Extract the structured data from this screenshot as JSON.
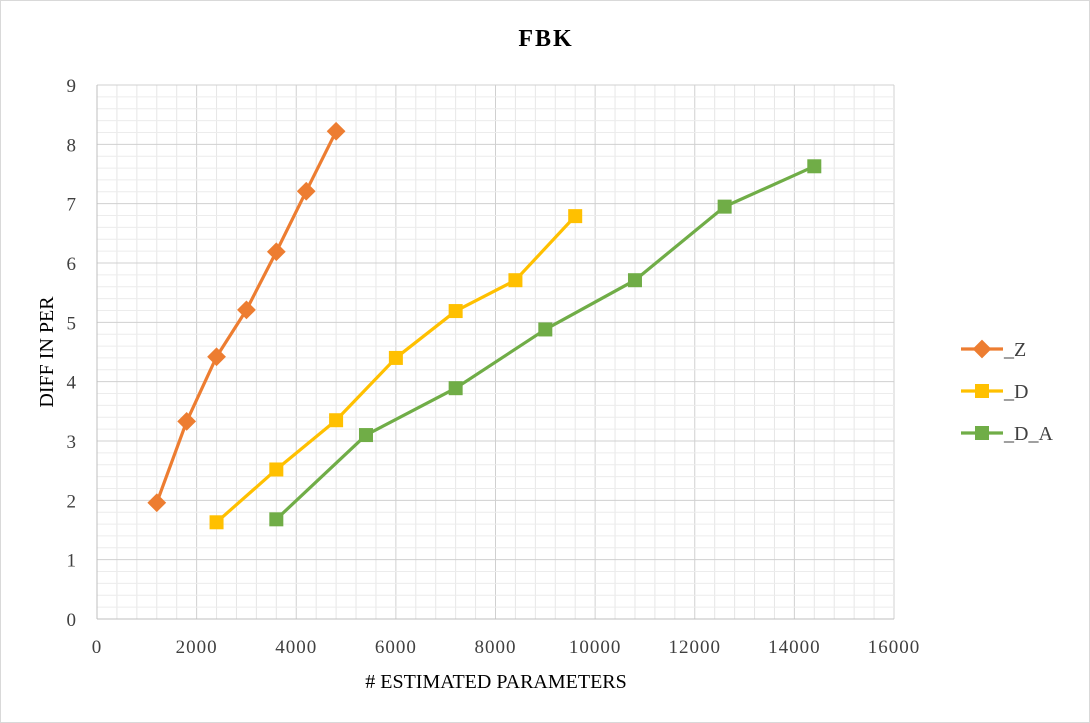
{
  "chart_data": {
    "type": "line",
    "title": "FBK",
    "xlabel": "# ESTIMATED PARAMETERS",
    "ylabel": "DIFF IN PER",
    "xlim": [
      0,
      16000
    ],
    "ylim": [
      0,
      9
    ],
    "x_ticks": [
      0,
      2000,
      4000,
      6000,
      8000,
      10000,
      12000,
      14000,
      16000
    ],
    "y_ticks": [
      0,
      1,
      2,
      3,
      4,
      5,
      6,
      7,
      8,
      9
    ],
    "grid": true,
    "legend_position": "right",
    "series": [
      {
        "name": "_Z",
        "color": "#ed7d31",
        "marker": "diamond",
        "x": [
          1200,
          1800,
          2400,
          3000,
          3600,
          4200,
          4800
        ],
        "y": [
          1.96,
          3.33,
          4.42,
          5.21,
          6.19,
          7.21,
          8.22
        ]
      },
      {
        "name": "_D",
        "color": "#ffc000",
        "marker": "square",
        "x": [
          2400,
          3600,
          4800,
          6000,
          7200,
          8400,
          9600
        ],
        "y": [
          1.63,
          2.52,
          3.35,
          4.4,
          5.19,
          5.71,
          6.79
        ]
      },
      {
        "name": "_D_A",
        "color": "#70ad47",
        "marker": "square",
        "x": [
          3600,
          5400,
          7200,
          9000,
          10800,
          12600,
          14400
        ],
        "y": [
          1.68,
          3.1,
          3.89,
          4.88,
          5.71,
          6.95,
          7.63
        ]
      }
    ]
  }
}
